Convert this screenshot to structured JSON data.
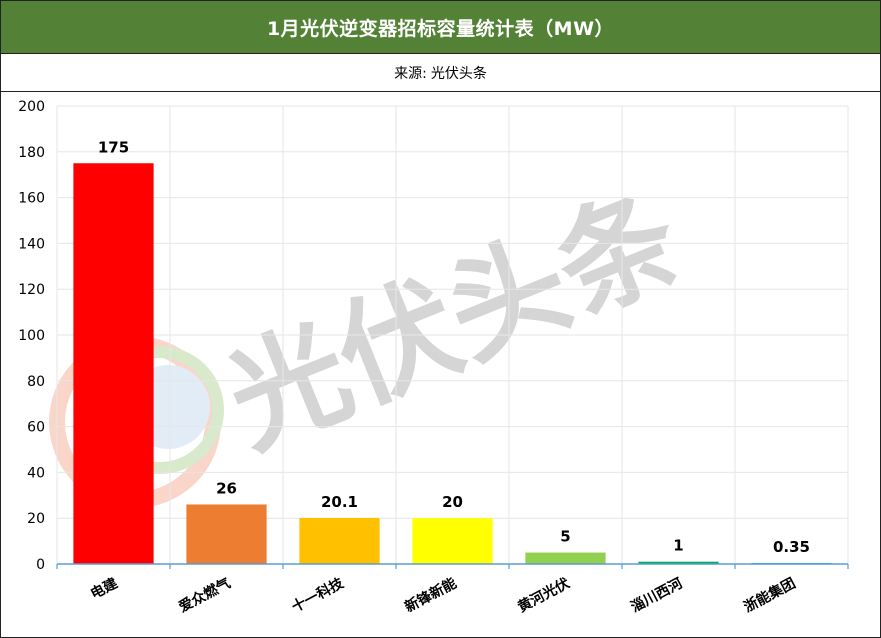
{
  "title": "1月光伏逆变器招标容量统计表（MW）",
  "source": {
    "label": "来源:",
    "value": "光伏头条"
  },
  "watermark": {
    "text": "光伏头条"
  },
  "colors": {
    "title_bg": "#538135",
    "grid": "#e6e6e6",
    "axis": "#5b9bd5"
  },
  "chart_data": {
    "type": "bar",
    "categories": [
      "电建",
      "爱众燃气",
      "十一科技",
      "新锋新能",
      "黄河光伏",
      "淄川西河",
      "浙能集团"
    ],
    "values": [
      175,
      26,
      20.1,
      20,
      5,
      1,
      0.35
    ],
    "value_labels": [
      "175",
      "26",
      "20.1",
      "20",
      "5",
      "1",
      "0.35"
    ],
    "colors": [
      "#ff0000",
      "#ed7d31",
      "#ffc000",
      "#ffff00",
      "#92d050",
      "#00b050",
      "#00b0f0"
    ],
    "ylim": [
      0,
      200
    ],
    "yticks": [
      "0",
      "20",
      "40",
      "60",
      "80",
      "100",
      "120",
      "140",
      "160",
      "180",
      "200"
    ],
    "grid": true,
    "title": "1月光伏逆变器招标容量统计表（MW）",
    "xlabel": "",
    "ylabel": ""
  }
}
